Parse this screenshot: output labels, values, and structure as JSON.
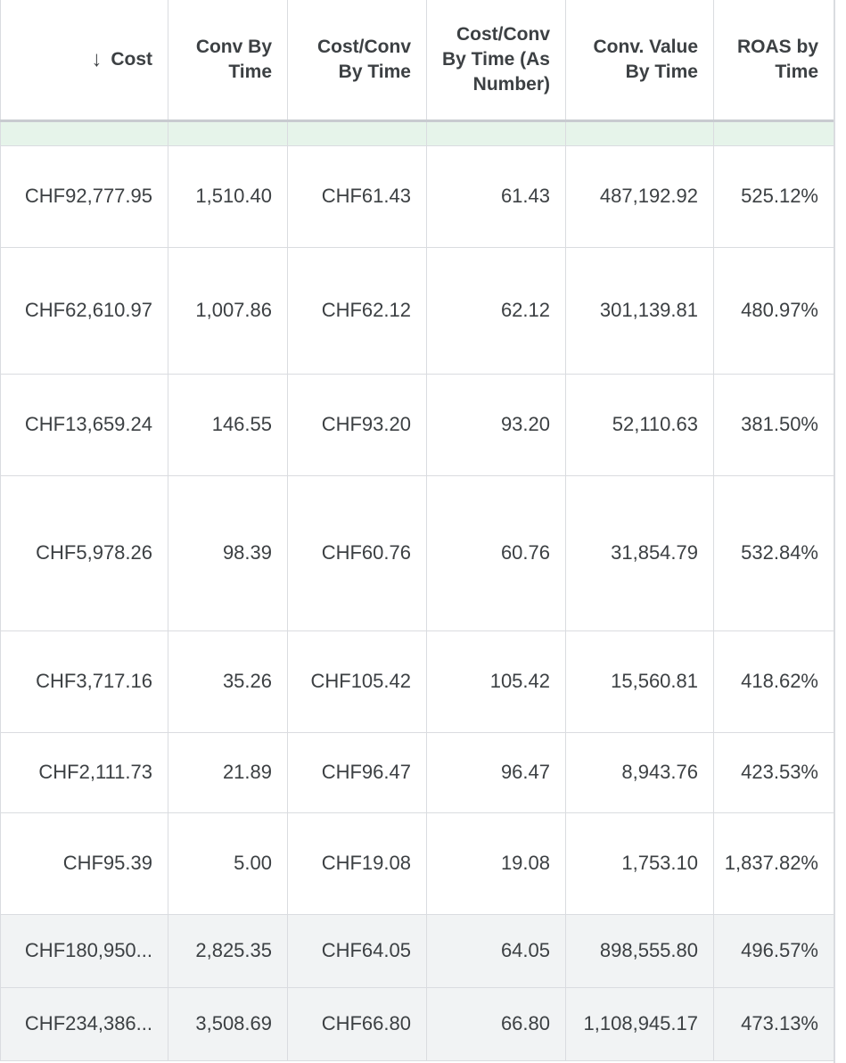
{
  "headers": {
    "cost": "Cost",
    "conv_by_time": "Conv By Time",
    "cost_conv_by_time": "Cost/Conv By Time",
    "cost_conv_number": "Cost/Conv By Time (As Number)",
    "conv_value_by_time": "Conv. Value By Time",
    "roas_by_time": "ROAS by Time"
  },
  "sort_icon": "arrow-down-icon",
  "rows": [
    {
      "cost": "CHF92,777.95",
      "conv": "1,510.40",
      "cpc": "CHF61.43",
      "cpc_num": "61.43",
      "value": "487,192.92",
      "roas": "525.12%"
    },
    {
      "cost": "CHF62,610.97",
      "conv": "1,007.86",
      "cpc": "CHF62.12",
      "cpc_num": "62.12",
      "value": "301,139.81",
      "roas": "480.97%"
    },
    {
      "cost": "CHF13,659.24",
      "conv": "146.55",
      "cpc": "CHF93.20",
      "cpc_num": "93.20",
      "value": "52,110.63",
      "roas": "381.50%"
    },
    {
      "cost": "CHF5,978.26",
      "conv": "98.39",
      "cpc": "CHF60.76",
      "cpc_num": "60.76",
      "value": "31,854.79",
      "roas": "532.84%"
    },
    {
      "cost": "CHF3,717.16",
      "conv": "35.26",
      "cpc": "CHF105.42",
      "cpc_num": "105.42",
      "value": "15,560.81",
      "roas": "418.62%"
    },
    {
      "cost": "CHF2,111.73",
      "conv": "21.89",
      "cpc": "CHF96.47",
      "cpc_num": "96.47",
      "value": "8,943.76",
      "roas": "423.53%"
    },
    {
      "cost": "CHF95.39",
      "conv": "5.00",
      "cpc": "CHF19.08",
      "cpc_num": "19.08",
      "value": "1,753.10",
      "roas": "1,837.82%"
    }
  ],
  "totals": [
    {
      "cost": "CHF180,950...",
      "conv": "2,825.35",
      "cpc": "CHF64.05",
      "cpc_num": "64.05",
      "value": "898,555.80",
      "roas": "496.57%"
    },
    {
      "cost": "CHF234,386...",
      "conv": "3,508.69",
      "cpc": "CHF66.80",
      "cpc_num": "66.80",
      "value": "1,108,945.17",
      "roas": "473.13%"
    }
  ]
}
